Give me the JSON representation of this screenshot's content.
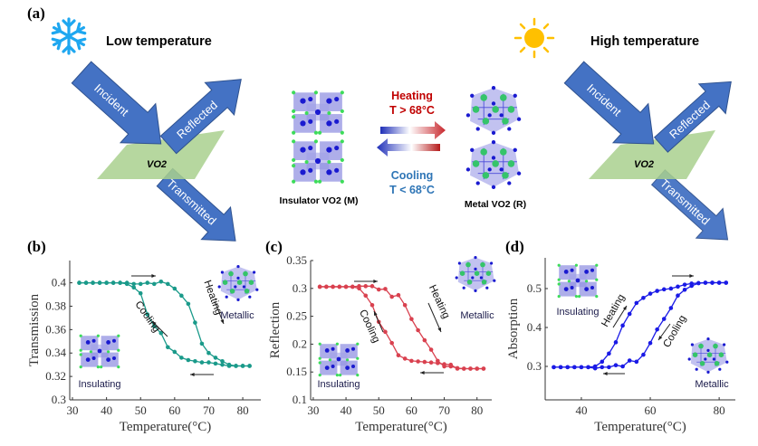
{
  "panel_a": {
    "label": "(a)",
    "low_title": "Low temperature",
    "high_title": "High temperature",
    "low_icon": "snowflake-icon",
    "high_icon": "sun-icon",
    "incident": "Incident",
    "reflected": "Reflected",
    "transmitted": "Transmitted",
    "material": "VO2",
    "heating": "Heating",
    "heating_cond": "T > 68°C",
    "cooling": "Cooling",
    "cooling_cond": "T < 68°C",
    "insulator_label": "Insulator VO2 (M)",
    "metal_label": "Metal VO2 (R)",
    "colors": {
      "beam": "#4472c4",
      "film": "#a9d08e",
      "heating": "#c00000",
      "cooling": "#2e75b6",
      "snow": "#1ea7f0",
      "sun": "#ffc000"
    }
  },
  "chart_data": [
    {
      "panel": "(b)",
      "type": "line",
      "xlabel": "Temperature(°C)",
      "ylabel": "Transmission",
      "xlim": [
        29.2,
        85.3
      ],
      "ylim": [
        0.3,
        0.419
      ],
      "xticks": [
        30,
        40,
        50,
        60,
        70,
        80
      ],
      "yticks": [
        0.3,
        0.32,
        0.34,
        0.36,
        0.38,
        0.4
      ],
      "color": "#1a9a8a",
      "grid": false,
      "annotations": {
        "heating": "Heating",
        "cooling": "Cooling",
        "metallic": "Metallic",
        "insulating": "Insulating"
      },
      "x": [
        32,
        34,
        36,
        38,
        40,
        42,
        44,
        46,
        48,
        50,
        52,
        54,
        56,
        58,
        60,
        62,
        64,
        66,
        68,
        70,
        72,
        74,
        76,
        78,
        80,
        82
      ],
      "series": [
        {
          "name": "Heating",
          "values": [
            0.4,
            0.4,
            0.4,
            0.4,
            0.4,
            0.4,
            0.4,
            0.4,
            0.399,
            0.399,
            0.4,
            0.399,
            0.401,
            0.399,
            0.395,
            0.389,
            0.382,
            0.366,
            0.348,
            0.34,
            0.336,
            0.333,
            0.33,
            0.329,
            0.329,
            0.329
          ]
        },
        {
          "name": "Cooling",
          "values": [
            0.4,
            0.4,
            0.4,
            0.4,
            0.4,
            0.4,
            0.4,
            0.399,
            0.396,
            0.391,
            0.373,
            0.363,
            0.357,
            0.345,
            0.341,
            0.336,
            0.334,
            0.333,
            0.332,
            0.332,
            0.331,
            0.33,
            0.329,
            0.329,
            0.329,
            0.329
          ]
        }
      ]
    },
    {
      "panel": "(c)",
      "type": "line",
      "xlabel": "Temperature(°C)",
      "ylabel": "Reflection",
      "xlim": [
        29.2,
        84.5
      ],
      "ylim": [
        0.1,
        0.35
      ],
      "xticks": [
        30,
        40,
        50,
        60,
        70,
        80
      ],
      "yticks": [
        0.1,
        0.15,
        0.2,
        0.25,
        0.3,
        0.35
      ],
      "color": "#d9414f",
      "grid": false,
      "annotations": {
        "heating": "Heating",
        "cooling": "Cooling",
        "metallic": "Metallic",
        "insulating": "Insulating"
      },
      "x": [
        32,
        34,
        36,
        38,
        40,
        42,
        44,
        46,
        48,
        50,
        52,
        54,
        56,
        58,
        60,
        62,
        64,
        66,
        68,
        70,
        72,
        74,
        76,
        78,
        80,
        82
      ],
      "series": [
        {
          "name": "Heating",
          "values": [
            0.303,
            0.303,
            0.303,
            0.303,
            0.303,
            0.303,
            0.304,
            0.304,
            0.304,
            0.298,
            0.299,
            0.285,
            0.288,
            0.27,
            0.245,
            0.225,
            0.207,
            0.19,
            0.17,
            0.16,
            0.16,
            0.157,
            0.156,
            0.156,
            0.156,
            0.156
          ]
        },
        {
          "name": "Cooling",
          "values": [
            0.303,
            0.303,
            0.303,
            0.303,
            0.303,
            0.303,
            0.3,
            0.287,
            0.27,
            0.24,
            0.222,
            0.202,
            0.18,
            0.174,
            0.17,
            0.169,
            0.168,
            0.167,
            0.166,
            0.164,
            0.163,
            0.156,
            0.156,
            0.156,
            0.156,
            0.156
          ]
        }
      ]
    },
    {
      "panel": "(d)",
      "type": "line",
      "xlabel": "Temperature(°C)",
      "ylabel": "Absorption",
      "xlim": [
        29.5,
        84.7
      ],
      "ylim": [
        0.214,
        0.579
      ],
      "xticks": [
        40,
        60,
        80
      ],
      "yticks": [
        0.3,
        0.4,
        0.5
      ],
      "color": "#1a1ae6",
      "grid": false,
      "annotations": {
        "heating": "Heating",
        "cooling": "Cooling",
        "metallic": "Metallic",
        "insulating": "Insulating"
      },
      "x": [
        32,
        34,
        36,
        38,
        40,
        42,
        44,
        46,
        48,
        50,
        52,
        54,
        56,
        58,
        60,
        62,
        64,
        66,
        68,
        70,
        72,
        74,
        76,
        78,
        80,
        82
      ],
      "series": [
        {
          "name": "Heating",
          "values": [
            0.298,
            0.298,
            0.298,
            0.298,
            0.298,
            0.298,
            0.3,
            0.312,
            0.333,
            0.362,
            0.405,
            0.435,
            0.463,
            0.476,
            0.487,
            0.494,
            0.498,
            0.5,
            0.505,
            0.51,
            0.513,
            0.514,
            0.515,
            0.515,
            0.515,
            0.515
          ]
        },
        {
          "name": "Cooling",
          "values": [
            0.298,
            0.298,
            0.298,
            0.298,
            0.298,
            0.298,
            0.295,
            0.298,
            0.298,
            0.303,
            0.3,
            0.315,
            0.312,
            0.33,
            0.36,
            0.395,
            0.422,
            0.45,
            0.482,
            0.497,
            0.507,
            0.514,
            0.515,
            0.515,
            0.515,
            0.515
          ]
        }
      ]
    }
  ]
}
